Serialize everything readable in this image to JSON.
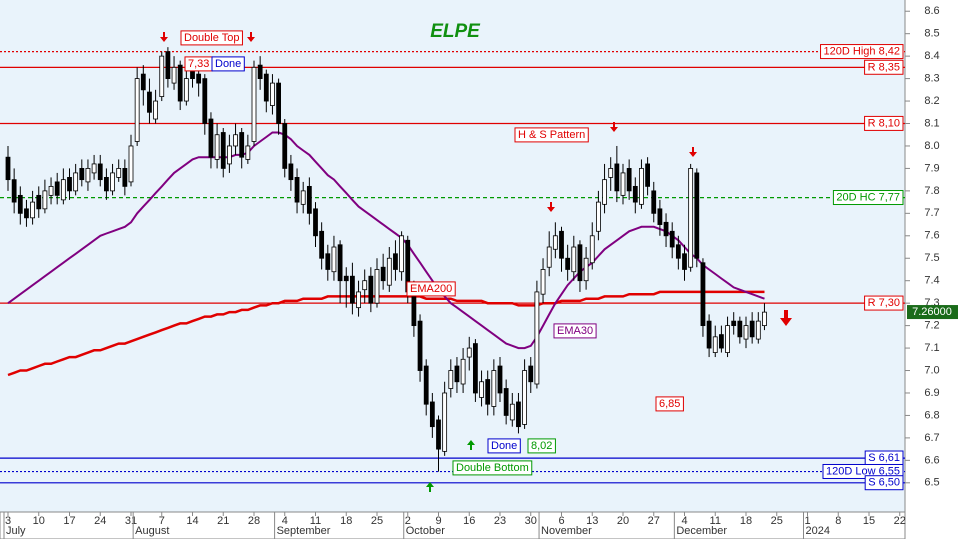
{
  "chart_data": {
    "type": "candlestick",
    "title": "ELPE",
    "ylim": [
      6.37,
      8.65
    ],
    "yticks": [
      6.5,
      6.6,
      6.7,
      6.8,
      6.9,
      {
        "value": 7,
        "label": "7.0"
      },
      7.1,
      7.2,
      7.3,
      7.4,
      7.5,
      7.6,
      7.7,
      7.8,
      7.9,
      {
        "value": 8,
        "label": "8.0"
      },
      8.1,
      8.2,
      8.3,
      8.4,
      8.5,
      8.6
    ],
    "categories": [
      "3",
      null,
      null,
      null,
      null,
      "10",
      null,
      null,
      null,
      null,
      "17",
      null,
      null,
      null,
      null,
      "24",
      null,
      null,
      null,
      null,
      "31",
      null,
      null,
      null,
      null,
      "7",
      null,
      null,
      null,
      null,
      "14",
      null,
      null,
      null,
      null,
      "21",
      null,
      null,
      null,
      null,
      "28",
      null,
      null,
      null,
      null,
      "4",
      null,
      null,
      null,
      null,
      "11",
      null,
      null,
      null,
      null,
      "18",
      null,
      null,
      null,
      null,
      "25",
      null,
      null,
      null,
      null,
      "2",
      null,
      null,
      null,
      null,
      "9",
      null,
      null,
      null,
      null,
      "16",
      null,
      null,
      null,
      null,
      "23",
      null,
      null,
      null,
      null,
      "30",
      null,
      null,
      null,
      null,
      "6",
      null,
      null,
      null,
      null,
      "13",
      null,
      null,
      null,
      null,
      "20",
      null,
      null,
      null,
      null,
      "27",
      null,
      null,
      null,
      null,
      "4",
      null,
      null,
      null,
      null,
      "11",
      null,
      null,
      null,
      null,
      "18",
      null,
      null,
      null,
      null,
      "25",
      null,
      null,
      null,
      null,
      "1",
      null,
      null,
      null,
      null,
      "8",
      null,
      null,
      null,
      null,
      "15",
      null,
      null,
      null,
      null,
      "22"
    ],
    "months": [
      "July",
      "August",
      "September",
      "October",
      "November",
      "December",
      "2024"
    ],
    "up_color": "#ffffff",
    "down_color": "#000000",
    "ohlc": {
      "open": [
        7.95,
        7.85,
        7.78,
        7.72,
        7.68,
        7.78,
        7.72,
        7.78,
        7.84,
        7.76,
        7.86,
        7.8,
        7.9,
        7.84,
        7.88,
        7.92,
        7.86,
        7.8,
        7.86,
        7.9,
        7.84,
        8.02,
        8.32,
        8.24,
        8.12,
        8.22,
        8.42,
        8.28,
        8.36,
        8.2,
        8.34,
        8.32,
        8.3,
        8.12,
        7.94,
        8.06,
        7.92,
        8.0,
        8.06,
        7.94,
        8.02,
        8.36,
        8.32,
        8.18,
        8.28,
        8.1,
        7.92,
        7.86,
        7.74,
        7.82,
        7.72,
        7.62,
        7.52,
        7.44,
        7.56,
        7.42,
        7.42,
        7.28,
        7.36,
        7.42,
        7.3,
        7.46,
        7.38,
        7.52,
        7.44,
        7.58,
        7.36,
        7.22,
        7.02,
        6.86,
        6.78,
        6.64,
        6.92,
        7.02,
        6.94,
        7.06,
        7.12,
        6.88,
        6.96,
        6.84,
        7.02,
        6.92,
        6.78,
        6.86,
        6.76,
        7.02,
        6.94,
        7.34,
        7.46,
        7.54,
        7.62,
        7.5,
        7.44,
        7.56,
        7.4,
        7.48,
        7.62,
        7.74,
        7.86,
        7.92,
        7.78,
        7.9,
        7.82,
        7.74,
        7.92,
        7.8,
        7.72,
        7.66,
        7.62,
        7.56,
        7.52,
        7.46,
        7.88,
        7.48,
        7.22,
        7.08,
        7.16,
        7.08,
        7.22,
        7.22,
        7.14,
        7.22,
        7.14,
        7.2,
        null,
        null,
        null,
        null,
        null,
        null,
        null,
        null,
        null,
        null,
        null,
        null,
        null,
        null,
        null,
        null,
        null,
        null,
        null,
        null,
        null,
        null
      ],
      "high": [
        8.0,
        7.9,
        7.82,
        7.76,
        7.8,
        7.82,
        7.85,
        7.86,
        7.88,
        7.9,
        7.9,
        7.92,
        7.94,
        7.94,
        7.96,
        7.96,
        7.9,
        7.92,
        7.94,
        7.94,
        8.05,
        8.35,
        8.36,
        8.3,
        8.25,
        8.42,
        8.44,
        8.4,
        8.38,
        8.34,
        8.38,
        8.36,
        8.32,
        8.15,
        8.1,
        8.08,
        8.05,
        8.1,
        8.08,
        8.05,
        8.38,
        8.4,
        8.34,
        8.32,
        8.3,
        8.12,
        7.96,
        7.9,
        7.84,
        7.86,
        7.75,
        7.66,
        7.56,
        7.6,
        7.58,
        7.46,
        7.48,
        7.4,
        7.45,
        7.46,
        7.5,
        7.52,
        7.55,
        7.58,
        7.62,
        7.6,
        7.4,
        7.25,
        7.05,
        6.9,
        6.8,
        6.95,
        7.05,
        7.06,
        7.1,
        7.15,
        7.14,
        7.0,
        7.0,
        7.05,
        7.06,
        6.96,
        6.9,
        6.9,
        7.05,
        7.06,
        7.4,
        7.5,
        7.62,
        7.66,
        7.64,
        7.56,
        7.6,
        7.58,
        7.55,
        7.66,
        7.8,
        7.92,
        7.95,
        8.0,
        7.92,
        7.94,
        7.86,
        7.94,
        7.95,
        7.84,
        7.76,
        7.7,
        7.66,
        7.6,
        7.56,
        7.92,
        7.9,
        7.5,
        7.25,
        7.2,
        7.2,
        7.24,
        7.26,
        7.24,
        7.24,
        7.26,
        7.26,
        7.3,
        null,
        null,
        null,
        null,
        null,
        null,
        null,
        null,
        null,
        null,
        null,
        null,
        null,
        null,
        null,
        null,
        null,
        null,
        null,
        null,
        null,
        null
      ],
      "low": [
        7.8,
        7.7,
        7.65,
        7.64,
        7.65,
        7.68,
        7.7,
        7.74,
        7.74,
        7.74,
        7.76,
        7.78,
        7.82,
        7.8,
        7.85,
        7.82,
        7.76,
        7.78,
        7.84,
        7.78,
        7.82,
        8.0,
        8.18,
        8.1,
        8.1,
        8.2,
        8.26,
        8.25,
        8.16,
        8.18,
        8.26,
        8.22,
        8.05,
        7.9,
        7.9,
        7.86,
        7.88,
        7.96,
        7.9,
        7.92,
        8.0,
        8.25,
        8.15,
        8.14,
        8.05,
        7.86,
        7.8,
        7.7,
        7.7,
        7.65,
        7.55,
        7.45,
        7.4,
        7.4,
        7.3,
        7.28,
        7.25,
        7.24,
        7.3,
        7.26,
        7.28,
        7.36,
        7.35,
        7.4,
        7.4,
        7.3,
        7.15,
        6.95,
        6.8,
        6.7,
        6.55,
        6.62,
        6.88,
        6.9,
        6.9,
        7.0,
        6.86,
        6.84,
        6.8,
        6.8,
        6.86,
        6.76,
        6.75,
        6.72,
        6.74,
        6.9,
        6.92,
        7.3,
        7.42,
        7.5,
        7.44,
        7.4,
        7.4,
        7.35,
        7.36,
        7.45,
        7.58,
        7.7,
        7.8,
        7.75,
        7.74,
        7.76,
        7.7,
        7.72,
        7.78,
        7.66,
        7.6,
        7.55,
        7.5,
        7.45,
        7.4,
        7.44,
        7.46,
        7.15,
        7.06,
        7.06,
        7.08,
        7.06,
        7.16,
        7.12,
        7.1,
        7.12,
        7.12,
        7.18,
        null,
        null,
        null,
        null,
        null,
        null,
        null,
        null,
        null,
        null,
        null,
        null,
        null,
        null,
        null,
        null,
        null,
        null,
        null,
        null,
        null,
        null
      ],
      "close": [
        7.85,
        7.75,
        7.7,
        7.68,
        7.75,
        7.72,
        7.8,
        7.82,
        7.78,
        7.85,
        7.8,
        7.88,
        7.85,
        7.9,
        7.92,
        7.85,
        7.8,
        7.88,
        7.9,
        7.82,
        8.0,
        8.3,
        8.25,
        8.15,
        8.2,
        8.4,
        8.3,
        8.35,
        8.2,
        8.3,
        8.3,
        8.28,
        8.1,
        7.95,
        8.05,
        7.9,
        8.0,
        8.05,
        7.95,
        8.0,
        8.35,
        8.3,
        8.2,
        8.28,
        8.1,
        7.9,
        7.85,
        7.75,
        7.8,
        7.7,
        7.6,
        7.5,
        7.45,
        7.55,
        7.4,
        7.4,
        7.3,
        7.35,
        7.4,
        7.3,
        7.45,
        7.4,
        7.5,
        7.45,
        7.6,
        7.35,
        7.2,
        7.0,
        6.85,
        6.75,
        6.65,
        6.9,
        7.0,
        6.95,
        7.05,
        7.1,
        6.9,
        6.95,
        6.85,
        7.0,
        6.9,
        6.8,
        6.85,
        6.75,
        7.0,
        6.95,
        7.35,
        7.45,
        7.55,
        7.6,
        7.5,
        7.45,
        7.55,
        7.4,
        7.5,
        7.6,
        7.75,
        7.85,
        7.9,
        7.8,
        7.88,
        7.8,
        7.75,
        7.9,
        7.82,
        7.7,
        7.65,
        7.6,
        7.55,
        7.5,
        7.45,
        7.9,
        7.5,
        7.2,
        7.1,
        7.15,
        7.1,
        7.2,
        7.2,
        7.15,
        7.2,
        7.15,
        7.22,
        7.26,
        null,
        null,
        null,
        null,
        null,
        null,
        null,
        null,
        null,
        null,
        null,
        null,
        null,
        null,
        null,
        null,
        null,
        null,
        null,
        null,
        null,
        null
      ]
    },
    "lines": [
      {
        "name": "EMA200",
        "color": "#e00000",
        "width": 2.5,
        "values": [
          6.98,
          6.99,
          7.0,
          7.0,
          7.01,
          7.02,
          7.03,
          7.03,
          7.04,
          7.05,
          7.06,
          7.06,
          7.07,
          7.08,
          7.09,
          7.09,
          7.1,
          7.11,
          7.12,
          7.12,
          7.13,
          7.14,
          7.15,
          7.16,
          7.17,
          7.18,
          7.19,
          7.2,
          7.21,
          7.21,
          7.22,
          7.23,
          7.24,
          7.24,
          7.25,
          7.25,
          7.26,
          7.26,
          7.27,
          7.27,
          7.28,
          7.29,
          7.29,
          7.3,
          7.3,
          7.31,
          7.31,
          7.31,
          7.32,
          7.32,
          7.32,
          7.32,
          7.33,
          7.33,
          7.33,
          7.33,
          7.33,
          7.33,
          7.33,
          7.33,
          7.33,
          7.33,
          7.33,
          7.33,
          7.33,
          7.33,
          7.33,
          7.33,
          7.32,
          7.32,
          7.32,
          7.32,
          7.32,
          7.31,
          7.31,
          7.31,
          7.31,
          7.31,
          7.3,
          7.3,
          7.3,
          7.3,
          7.3,
          7.29,
          7.29,
          7.29,
          7.29,
          7.3,
          7.3,
          7.3,
          7.31,
          7.31,
          7.31,
          7.31,
          7.32,
          7.32,
          7.32,
          7.33,
          7.33,
          7.33,
          7.33,
          7.34,
          7.34,
          7.34,
          7.34,
          7.34,
          7.35,
          7.35,
          7.35,
          7.35,
          7.35,
          7.35,
          7.35,
          7.35,
          7.35,
          7.35,
          7.35,
          7.35,
          7.35,
          7.35,
          7.35,
          7.35,
          7.35,
          7.35,
          null,
          null,
          null,
          null,
          null,
          null,
          null,
          null,
          null,
          null,
          null,
          null,
          null,
          null,
          null,
          null,
          null,
          null,
          null,
          null,
          null,
          null
        ]
      },
      {
        "name": "EMA30",
        "color": "#800080",
        "width": 2,
        "values": [
          7.3,
          7.32,
          7.34,
          7.36,
          7.38,
          7.4,
          7.42,
          7.44,
          7.46,
          7.48,
          7.5,
          7.52,
          7.54,
          7.56,
          7.58,
          7.6,
          7.61,
          7.62,
          7.63,
          7.64,
          7.66,
          7.7,
          7.73,
          7.76,
          7.79,
          7.82,
          7.85,
          7.88,
          7.9,
          7.92,
          7.94,
          7.95,
          7.95,
          7.95,
          7.95,
          7.95,
          7.95,
          7.96,
          7.96,
          7.97,
          8.0,
          8.02,
          8.04,
          8.06,
          8.06,
          8.05,
          8.03,
          8.0,
          7.98,
          7.96,
          7.93,
          7.9,
          7.87,
          7.85,
          7.82,
          7.79,
          7.76,
          7.73,
          7.71,
          7.69,
          7.67,
          7.65,
          7.63,
          7.61,
          7.59,
          7.56,
          7.52,
          7.48,
          7.44,
          7.4,
          7.36,
          7.33,
          7.3,
          7.28,
          7.26,
          7.24,
          7.22,
          7.2,
          7.18,
          7.16,
          7.14,
          7.12,
          7.11,
          7.1,
          7.1,
          7.11,
          7.15,
          7.2,
          7.25,
          7.3,
          7.34,
          7.38,
          7.41,
          7.44,
          7.46,
          7.48,
          7.51,
          7.54,
          7.56,
          7.58,
          7.6,
          7.62,
          7.63,
          7.64,
          7.64,
          7.64,
          7.63,
          7.62,
          7.6,
          7.58,
          7.55,
          7.52,
          7.5,
          7.47,
          7.45,
          7.43,
          7.41,
          7.39,
          7.37,
          7.36,
          7.35,
          7.34,
          7.33,
          7.32,
          null,
          null,
          null,
          null,
          null,
          null,
          null,
          null,
          null,
          null,
          null,
          null,
          null,
          null,
          null,
          null,
          null,
          null,
          null,
          null,
          null,
          null
        ]
      }
    ],
    "levels": [
      {
        "label": "120D High 8,42",
        "value": 8.42,
        "color": "#e00000",
        "style": "dotted"
      },
      {
        "label": "R 8,35",
        "value": 8.35,
        "color": "#e00000",
        "style": "solid"
      },
      {
        "label": "R 8,10",
        "value": 8.1,
        "color": "#e00000",
        "style": "solid"
      },
      {
        "label": "20D HC 7,77",
        "value": 7.77,
        "color": "#009900",
        "style": "dashed"
      },
      {
        "label": "R 7,30",
        "value": 7.3,
        "color": "#e00000",
        "style": "solid"
      },
      {
        "label": "S 6,61",
        "value": 6.61,
        "color": "#0000cc",
        "style": "solid"
      },
      {
        "label": "120D Low 6,55",
        "value": 6.55,
        "color": "#0000cc",
        "style": "dotted"
      },
      {
        "label": "S 6,50",
        "value": 6.5,
        "color": "#0000cc",
        "style": "solid"
      }
    ],
    "annotations": [
      {
        "text": "Double Top",
        "color": "#e00000"
      },
      {
        "text": "7,33",
        "color": "#e00000"
      },
      {
        "text": "Done",
        "color": "#0000cc"
      },
      {
        "text": "H & S Pattern",
        "color": "#e00000"
      },
      {
        "text": "6,85",
        "color": "#e00000"
      },
      {
        "text": "Done",
        "color": "#0000cc"
      },
      {
        "text": "8,02",
        "color": "#009900"
      },
      {
        "text": "Double Bottom",
        "color": "#009900"
      }
    ],
    "last_price_label": "7.26000"
  }
}
